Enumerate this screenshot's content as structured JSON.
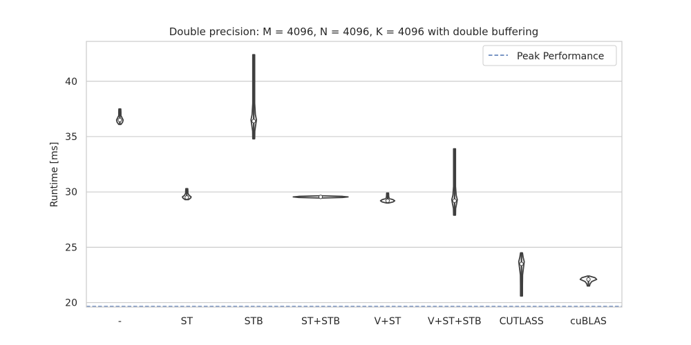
{
  "chart_data": {
    "type": "violin",
    "title": "Double precision: M = 4096, N = 4096, K = 4096 with double buffering",
    "xlabel": "",
    "ylabel": "Runtime [ms]",
    "ylim": [
      19.6,
      43.6
    ],
    "yticks": [
      20,
      25,
      30,
      35,
      40
    ],
    "grid": "horizontal",
    "legend_position": "top-right",
    "colors": {
      "violin_fill": "#ffffff",
      "violin_edge": "#3f3f3f",
      "grid": "#cccccc",
      "frame": "#cccccc",
      "peak_line": "#4c72b0"
    },
    "categories": [
      "-",
      "ST",
      "STB",
      "ST+STB",
      "V+ST",
      "V+ST+STB",
      "CUTLASS",
      "cuBLAS"
    ],
    "distributions": [
      {
        "category": "-",
        "min": 36.1,
        "max": 37.5,
        "median": 36.5,
        "profile": [
          [
            36.1,
            0.2
          ],
          [
            36.3,
            0.5
          ],
          [
            36.5,
            0.6
          ],
          [
            36.7,
            0.4
          ],
          [
            36.9,
            0.2
          ],
          [
            37.2,
            0.2
          ],
          [
            37.5,
            0.1
          ]
        ]
      },
      {
        "category": "ST",
        "min": 29.3,
        "max": 30.3,
        "median": 29.5,
        "profile": [
          [
            29.3,
            0.3
          ],
          [
            29.45,
            0.7
          ],
          [
            29.55,
            0.8
          ],
          [
            29.7,
            0.4
          ],
          [
            29.9,
            0.2
          ],
          [
            30.1,
            0.2
          ],
          [
            30.3,
            0.1
          ]
        ]
      },
      {
        "category": "STB",
        "min": 34.8,
        "max": 42.4,
        "median": 36.4,
        "profile": [
          [
            34.8,
            0.1
          ],
          [
            35.5,
            0.2
          ],
          [
            36.2,
            0.4
          ],
          [
            36.5,
            0.5
          ],
          [
            37.0,
            0.3
          ],
          [
            38.0,
            0.15
          ],
          [
            40.0,
            0.12
          ],
          [
            42.4,
            0.1
          ]
        ]
      },
      {
        "category": "ST+STB",
        "min": 29.45,
        "max": 29.65,
        "median": 29.55,
        "profile": [
          [
            29.45,
            0.05
          ],
          [
            29.5,
            4.0
          ],
          [
            29.55,
            5.0
          ],
          [
            29.6,
            4.0
          ],
          [
            29.65,
            0.05
          ]
        ]
      },
      {
        "category": "V+ST",
        "min": 29.0,
        "max": 29.9,
        "median": 29.2,
        "profile": [
          [
            29.0,
            0.2
          ],
          [
            29.1,
            1.0
          ],
          [
            29.2,
            1.3
          ],
          [
            29.3,
            1.0
          ],
          [
            29.4,
            0.3
          ],
          [
            29.6,
            0.2
          ],
          [
            29.9,
            0.1
          ]
        ]
      },
      {
        "category": "V+ST+STB",
        "min": 27.9,
        "max": 33.9,
        "median": 29.2,
        "profile": [
          [
            27.9,
            0.1
          ],
          [
            28.5,
            0.2
          ],
          [
            29.0,
            0.4
          ],
          [
            29.3,
            0.5
          ],
          [
            29.7,
            0.3
          ],
          [
            30.5,
            0.15
          ],
          [
            32.0,
            0.12
          ],
          [
            33.9,
            0.1
          ]
        ]
      },
      {
        "category": "CUTLASS",
        "min": 20.6,
        "max": 24.5,
        "median": 23.5,
        "profile": [
          [
            20.6,
            0.1
          ],
          [
            21.5,
            0.15
          ],
          [
            22.5,
            0.2
          ],
          [
            23.3,
            0.4
          ],
          [
            23.7,
            0.5
          ],
          [
            24.1,
            0.3
          ],
          [
            24.5,
            0.1
          ]
        ]
      },
      {
        "category": "cuBLAS",
        "min": 21.5,
        "max": 22.4,
        "median": 22.1,
        "profile": [
          [
            21.5,
            0.2
          ],
          [
            21.7,
            0.3
          ],
          [
            21.9,
            0.6
          ],
          [
            22.1,
            1.5
          ],
          [
            22.25,
            1.2
          ],
          [
            22.4,
            0.2
          ]
        ]
      }
    ],
    "reference_lines": [
      {
        "name": "Peak Performance",
        "y": 19.65,
        "style": "dashed"
      }
    ]
  }
}
